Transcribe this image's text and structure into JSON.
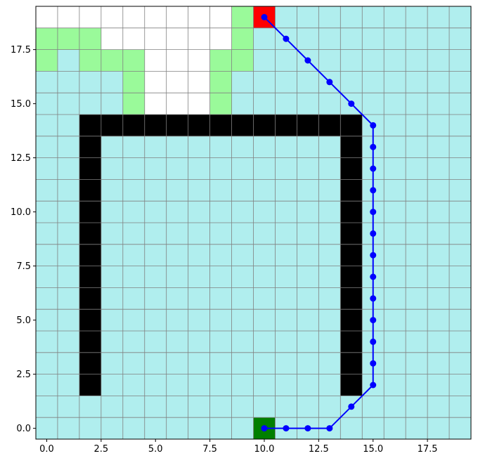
{
  "chart_data": {
    "type": "heatmap",
    "title": "",
    "xlabel": "",
    "ylabel": "",
    "xlim": [
      -0.5,
      19.5
    ],
    "ylim": [
      -0.5,
      19.5
    ],
    "grid": true,
    "grid_size": [
      20,
      20
    ],
    "x_ticks": [
      "0.0",
      "2.5",
      "5.0",
      "7.5",
      "10.0",
      "12.5",
      "15.0",
      "17.5"
    ],
    "y_ticks": [
      "0.0",
      "2.5",
      "5.0",
      "7.5",
      "10.0",
      "12.5",
      "15.0",
      "17.5"
    ],
    "colors": {
      "free": "#b0eeee",
      "unknown": "#ffffff",
      "frontier": "#9afa9a",
      "obstacle": "#000000",
      "start": "#007f00",
      "goal": "#ff0000",
      "path": "#0000ff",
      "grid": "#808080"
    },
    "unknown_cells": [
      [
        0,
        19
      ],
      [
        1,
        19
      ],
      [
        2,
        19
      ],
      [
        3,
        19
      ],
      [
        4,
        19
      ],
      [
        5,
        19
      ],
      [
        6,
        19
      ],
      [
        7,
        19
      ],
      [
        8,
        19
      ],
      [
        3,
        18
      ],
      [
        4,
        18
      ],
      [
        5,
        18
      ],
      [
        6,
        18
      ],
      [
        7,
        18
      ],
      [
        8,
        18
      ],
      [
        5,
        17
      ],
      [
        6,
        17
      ],
      [
        7,
        17
      ],
      [
        5,
        16
      ],
      [
        6,
        16
      ],
      [
        7,
        16
      ],
      [
        5,
        15
      ],
      [
        6,
        15
      ],
      [
        7,
        15
      ]
    ],
    "frontier_cells": [
      [
        9,
        19
      ],
      [
        0,
        18
      ],
      [
        1,
        18
      ],
      [
        2,
        18
      ],
      [
        9,
        18
      ],
      [
        0,
        17
      ],
      [
        2,
        17
      ],
      [
        3,
        17
      ],
      [
        4,
        17
      ],
      [
        8,
        17
      ],
      [
        9,
        17
      ],
      [
        4,
        16
      ],
      [
        8,
        16
      ],
      [
        4,
        15
      ],
      [
        8,
        15
      ]
    ],
    "obstacle_rects": [
      {
        "x0": 2,
        "x1": 14,
        "y0": 14,
        "y1": 14
      },
      {
        "x0": 2,
        "x1": 2,
        "y0": 2,
        "y1": 13
      },
      {
        "x0": 14,
        "x1": 14,
        "y0": 2,
        "y1": 13
      }
    ],
    "start": [
      10,
      0
    ],
    "goal": [
      10,
      19
    ],
    "series": [
      {
        "x": [
          10,
          11,
          12,
          13,
          14,
          15,
          15,
          15,
          15,
          15,
          15,
          15,
          15,
          15,
          15,
          15,
          15,
          15,
          14,
          13,
          12,
          11,
          10
        ],
        "y": [
          0,
          0,
          0,
          0,
          1,
          2,
          3,
          4,
          5,
          6,
          7,
          8,
          9,
          10,
          11,
          12,
          13,
          14,
          15,
          16,
          17,
          18,
          19
        ]
      }
    ]
  }
}
